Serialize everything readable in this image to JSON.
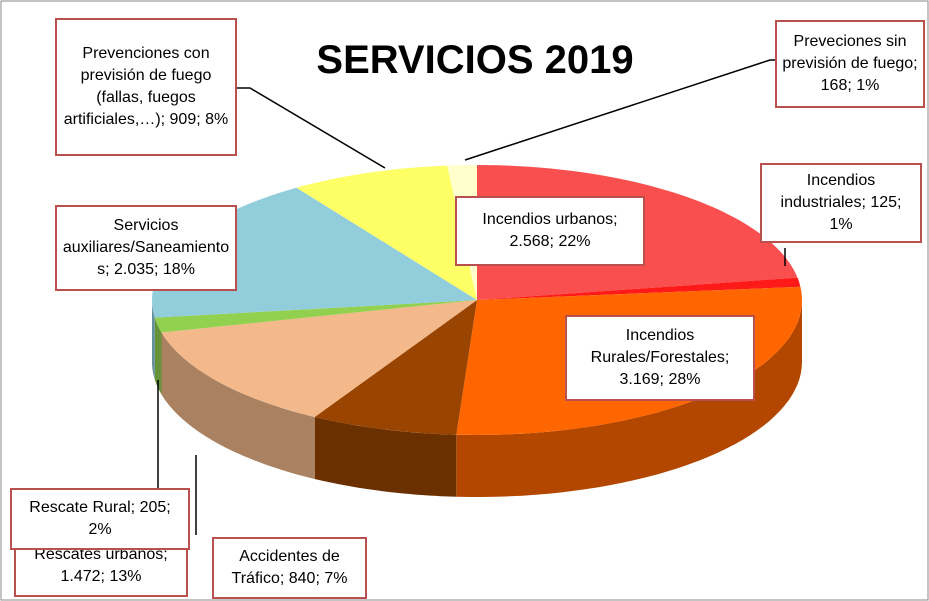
{
  "chart_data": {
    "type": "pie3d",
    "title": "SERVICIOS 2019",
    "labels": [
      "Incendios urbanos; 2.568; 22%",
      "Incendios industriales; 125; 1%",
      "Incendios Rurales/Forestales; 3.169; 28%",
      "Accidentes de Tráfico; 840; 7%",
      "Rescates urbanos; 1.472; 13%",
      "Rescate Rural; 205; 2%",
      "Servicios auxiliares/Saneamientos; 2.035; 18%",
      "Prevenciones con previsión de fuego (fallas, fuegos artificiales,…); 909; 8%",
      "Preveciones sin previsión de fuego; 168; 1%"
    ],
    "values": [
      2568,
      125,
      3169,
      840,
      1472,
      205,
      2035,
      909,
      168
    ],
    "colors": [
      "#f94f4f",
      "#ff1a1a",
      "#ff6600",
      "#994400",
      "#f4b98a",
      "#92d050",
      "#92cddc",
      "#ffff66",
      "#ffffcc"
    ]
  }
}
